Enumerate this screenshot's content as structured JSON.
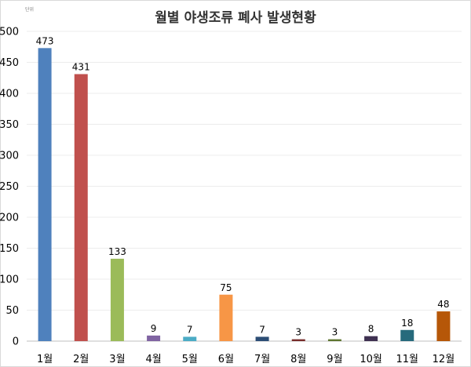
{
  "chart_data": {
    "type": "bar",
    "title": "월별 야생조류 폐사 발생현황",
    "unit": "단위",
    "categories": [
      "1월",
      "2월",
      "3월",
      "4월",
      "5월",
      "6월",
      "7월",
      "8월",
      "9월",
      "10월",
      "11월",
      "12월"
    ],
    "values": [
      473,
      431,
      133,
      9,
      7,
      75,
      7,
      3,
      3,
      8,
      18,
      48
    ],
    "colors": [
      "#4f81bd",
      "#c0504d",
      "#9bbb59",
      "#8064a2",
      "#4bacc6",
      "#f79646",
      "#2c4d75",
      "#772c2a",
      "#5f7530",
      "#3f3151",
      "#276a7c",
      "#b65708"
    ],
    "ylim": [
      0,
      500
    ],
    "yticks": [
      0,
      50,
      100,
      150,
      200,
      250,
      300,
      350,
      400,
      450,
      500
    ],
    "grid": true,
    "xlabel": "",
    "ylabel": ""
  }
}
